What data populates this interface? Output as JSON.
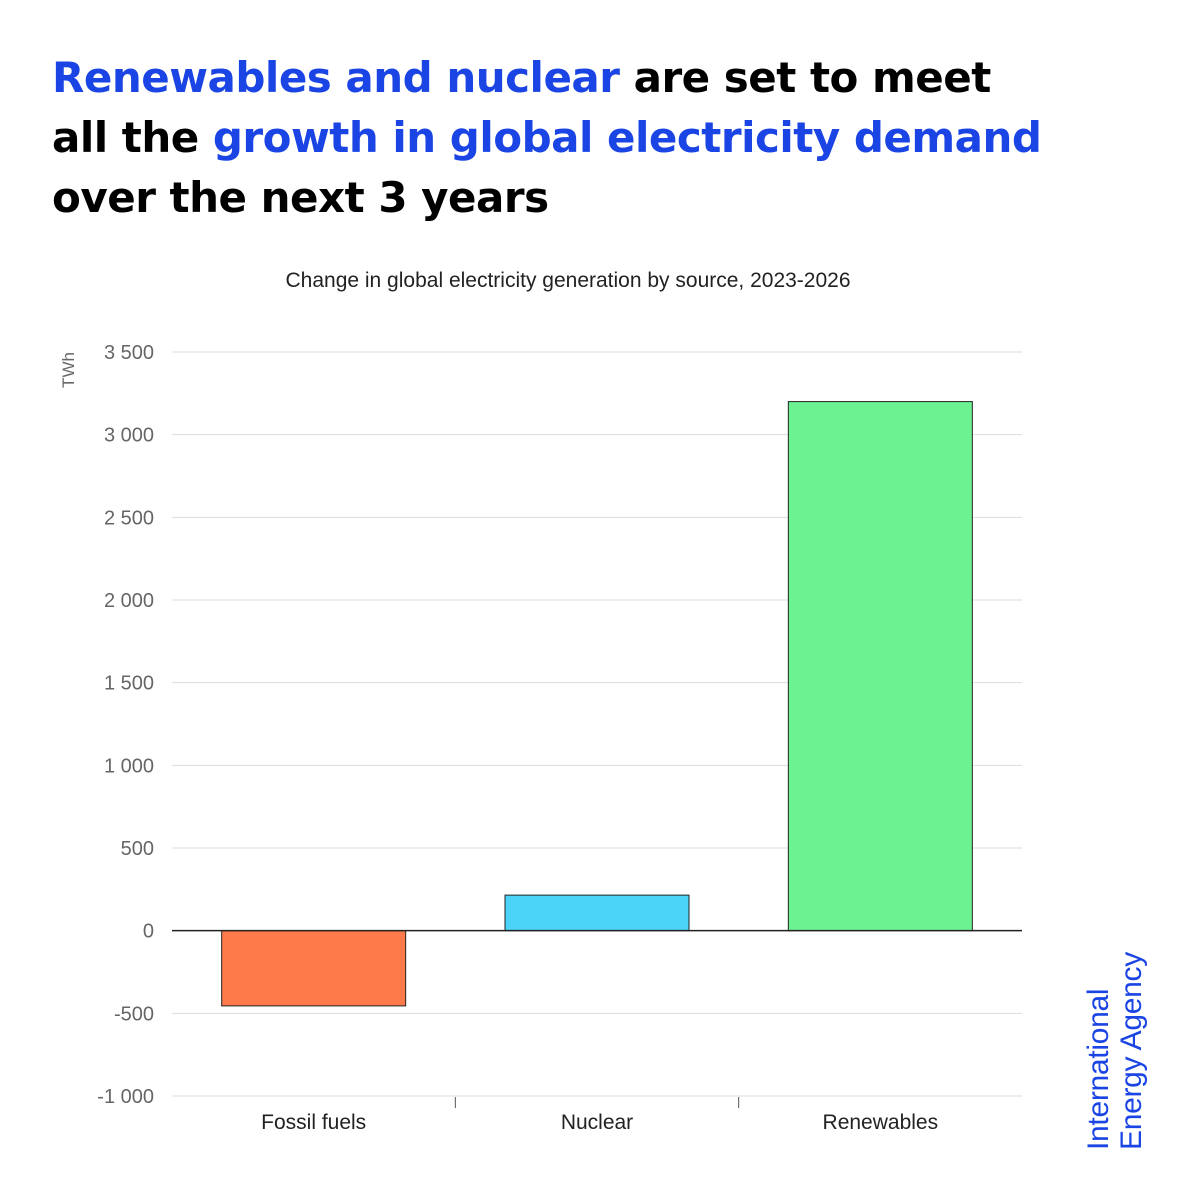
{
  "headline": {
    "segments": [
      {
        "text": "Renewables and nuclear",
        "highlight": true
      },
      {
        "text": " are set to meet all the ",
        "highlight": false
      },
      {
        "text": "growth in global electricity demand",
        "highlight": true
      },
      {
        "text": " over the next 3 years",
        "highlight": false
      }
    ]
  },
  "logo": {
    "line1": "International",
    "line2": "Energy Agency"
  },
  "colors": {
    "accent": "#1a44e4",
    "text": "#000000",
    "axis_text": "#666666",
    "grid": "#dddddd"
  },
  "chart_data": {
    "type": "bar",
    "title": "Change in global electricity generation by source, 2023-2026",
    "xlabel": "",
    "ylabel": "TWh",
    "categories": [
      "Fossil fuels",
      "Nuclear",
      "Renewables"
    ],
    "values": [
      -455,
      215,
      3200
    ],
    "bar_colors": [
      "#ff7a4a",
      "#4cd3f8",
      "#6cf290"
    ],
    "ylim": [
      -1000,
      3500
    ],
    "yticks": [
      -1000,
      -500,
      0,
      500,
      1000,
      1500,
      2000,
      2500,
      3000,
      3500
    ],
    "ytick_labels": [
      "-1 000",
      "-500",
      "0",
      "500",
      "1 000",
      "1 500",
      "2 000",
      "2 500",
      "3 000",
      "3 500"
    ],
    "grid": true,
    "legend": "none"
  }
}
